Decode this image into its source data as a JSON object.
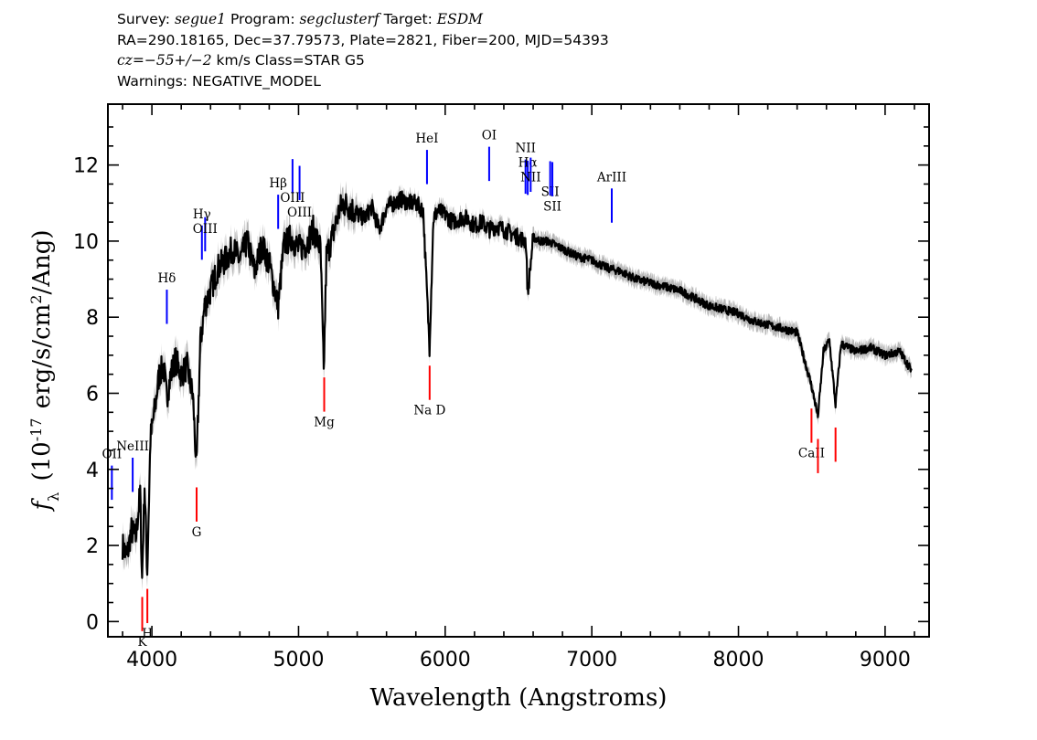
{
  "header": {
    "survey_label": "Survey:",
    "survey": "segue1",
    "program_label": "Program:",
    "program": "segclusterf",
    "target_label": "Target:",
    "target": "ESDM",
    "line2": "RA=290.18165, Dec=37.79573, Plate=2821, Fiber=200, MJD=54393",
    "cz_label": "cz",
    "cz_value": "=−55+/−2",
    "cz_unit": " km/s Class=STAR G5",
    "warnings": "Warnings: NEGATIVE_MODEL"
  },
  "colors": {
    "spectrum": "#000000",
    "error_band": "#b8b8b8",
    "emission_line": "#0000ff",
    "absorption_line": "#ff0000",
    "axes": "#000000"
  },
  "chart_data": {
    "type": "line",
    "xlabel": "Wavelength (Angstroms)",
    "ylabel": "f_λ (10^-17 erg/s/cm^2/Ang)",
    "xlim": [
      3700,
      9300
    ],
    "ylim": [
      -0.4,
      13.6
    ],
    "xticks": [
      4000,
      5000,
      6000,
      7000,
      8000,
      9000
    ],
    "yticks": [
      0,
      2,
      4,
      6,
      8,
      10,
      12
    ],
    "series": [
      {
        "x": [
          3800,
          3830,
          3860,
          3890,
          3920,
          3933,
          3950,
          3968,
          3990,
          4020,
          4050,
          4080,
          4101,
          4130,
          4160,
          4200,
          4240,
          4280,
          4304,
          4330,
          4360,
          4400,
          4450,
          4500,
          4550,
          4600,
          4650,
          4700,
          4750,
          4800,
          4861,
          4900,
          4950,
          5000,
          5050,
          5100,
          5150,
          5172,
          5190,
          5230,
          5270,
          5300,
          5350,
          5400,
          5450,
          5500,
          5550,
          5600,
          5650,
          5700,
          5750,
          5800,
          5850,
          5893,
          5920,
          5950,
          6000,
          6050,
          6100,
          6150,
          6200,
          6250,
          6300,
          6350,
          6400,
          6450,
          6500,
          6550,
          6563,
          6600,
          6650,
          6700,
          6750,
          6800,
          6900,
          7000,
          7100,
          7200,
          7300,
          7400,
          7500,
          7600,
          7700,
          7800,
          7900,
          8000,
          8100,
          8200,
          8300,
          8400,
          8498,
          8542,
          8580,
          8620,
          8662,
          8700,
          8800,
          8900,
          9000,
          9100,
          9180
        ],
        "y": [
          2.0,
          1.7,
          2.4,
          2.2,
          3.4,
          1.1,
          3.6,
          1.3,
          4.8,
          5.6,
          6.5,
          6.7,
          5.9,
          6.5,
          6.9,
          6.5,
          6.7,
          5.9,
          4.0,
          7.3,
          8.3,
          8.7,
          9.3,
          9.5,
          9.8,
          9.5,
          10.0,
          9.2,
          9.9,
          9.4,
          8.3,
          9.9,
          10.1,
          9.8,
          9.9,
          10.3,
          9.8,
          6.5,
          9.6,
          10.1,
          10.7,
          11.0,
          10.9,
          10.7,
          10.6,
          10.9,
          10.3,
          10.9,
          11.0,
          11.1,
          11.0,
          11.0,
          10.8,
          7.2,
          10.6,
          10.8,
          10.7,
          10.5,
          10.6,
          10.6,
          10.4,
          10.5,
          10.3,
          10.4,
          10.3,
          10.2,
          10.1,
          10.0,
          8.6,
          10.1,
          10.0,
          10.0,
          9.9,
          9.8,
          9.6,
          9.5,
          9.3,
          9.2,
          9.0,
          8.9,
          8.8,
          8.7,
          8.5,
          8.3,
          8.2,
          8.1,
          7.9,
          7.8,
          7.7,
          7.6,
          6.2,
          5.4,
          7.1,
          7.4,
          5.7,
          7.3,
          7.1,
          7.2,
          7.0,
          7.1,
          6.6
        ]
      }
    ],
    "emission_lines": [
      {
        "label": "OII",
        "wavelength": 3727
      },
      {
        "label": "NeIII",
        "wavelength": 3869
      },
      {
        "label": "Hδ",
        "wavelength": 4102
      },
      {
        "label": "Hγ",
        "wavelength": 4341
      },
      {
        "label": "OIII",
        "wavelength": 4363
      },
      {
        "label": "Hβ",
        "wavelength": 4861
      },
      {
        "label": "OIII",
        "wavelength": 4959
      },
      {
        "label": "OIII",
        "wavelength": 5007
      },
      {
        "label": "HeI",
        "wavelength": 5876
      },
      {
        "label": "OI",
        "wavelength": 6300
      },
      {
        "label": "NII",
        "wavelength": 6548
      },
      {
        "label": "Hα",
        "wavelength": 6563
      },
      {
        "label": "NII",
        "wavelength": 6583
      },
      {
        "label": "SII",
        "wavelength": 6716
      },
      {
        "label": "SII",
        "wavelength": 6731
      },
      {
        "label": "ArIII",
        "wavelength": 7136
      }
    ],
    "absorption_lines": [
      {
        "label": "K",
        "wavelength": 3934
      },
      {
        "label": "H",
        "wavelength": 3969
      },
      {
        "label": "G",
        "wavelength": 4305
      },
      {
        "label": "Mg",
        "wavelength": 5175
      },
      {
        "label": "Na D",
        "wavelength": 5894
      },
      {
        "label": "CaII",
        "wavelength": 8498
      },
      {
        "label": "CaII",
        "wavelength": 8542
      },
      {
        "label": "CaII",
        "wavelength": 8662
      }
    ]
  }
}
